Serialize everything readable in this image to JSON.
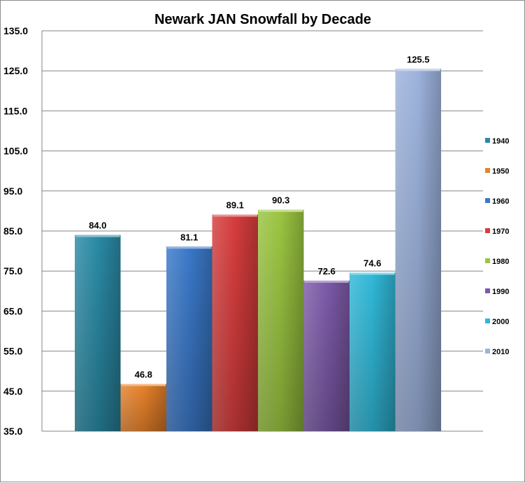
{
  "chart_data": {
    "type": "bar",
    "title": "Newark JAN Snowfall by Decade",
    "xlabel": "",
    "ylabel": "",
    "ylim": [
      35.0,
      135.0
    ],
    "y_ticks": [
      "35.0",
      "45.0",
      "55.0",
      "65.0",
      "75.0",
      "85.0",
      "95.0",
      "105.0",
      "115.0",
      "125.0",
      "135.0"
    ],
    "grid": true,
    "legend_position": "right",
    "series": [
      {
        "name": "1940",
        "value": 84.0,
        "label": "84.0",
        "color": "#2a8aa5"
      },
      {
        "name": "1950",
        "value": 46.8,
        "label": "46.8",
        "color": "#e8822a"
      },
      {
        "name": "1960",
        "value": 81.1,
        "label": "81.1",
        "color": "#3a78c8"
      },
      {
        "name": "1970",
        "value": 89.1,
        "label": "89.1",
        "color": "#d63c3c"
      },
      {
        "name": "1980",
        "value": 90.3,
        "label": "90.3",
        "color": "#9ac440"
      },
      {
        "name": "1990",
        "value": 72.6,
        "label": "72.6",
        "color": "#7c5aa8"
      },
      {
        "name": "2000",
        "value": 74.6,
        "label": "74.6",
        "color": "#30b8d8"
      },
      {
        "name": "2010",
        "value": 125.5,
        "label": "125.5",
        "color": "#9cb2dc"
      }
    ]
  }
}
